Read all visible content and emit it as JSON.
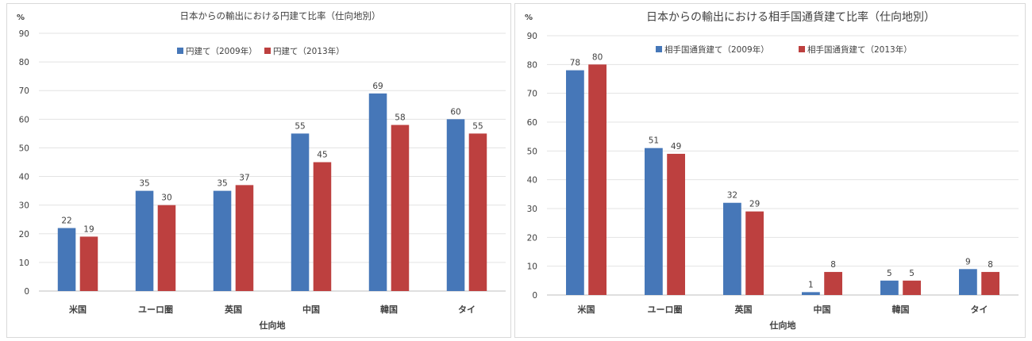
{
  "chart_data": [
    {
      "type": "bar",
      "title": "日本からの輸出における円建て比率（仕向地別）",
      "y_unit_label": "%",
      "xlabel": "仕向地",
      "ylabel": "",
      "ylim": [
        0,
        90
      ],
      "yticks": [
        0,
        10,
        20,
        30,
        40,
        50,
        60,
        70,
        80,
        90
      ],
      "categories": [
        "米国",
        "ユーロ圏",
        "英国",
        "中国",
        "韓国",
        "タイ"
      ],
      "series": [
        {
          "name": "円建て（2009年）",
          "color": "#4677b8",
          "values": [
            22,
            35,
            35,
            55,
            69,
            60
          ],
          "data_labels": [
            "22",
            "35",
            "35",
            "55",
            "69",
            "60"
          ]
        },
        {
          "name": "円建て（2013年）",
          "color": "#bd403f",
          "values": [
            19,
            30,
            37,
            45,
            58,
            55
          ],
          "data_labels": [
            "19",
            "30",
            "37",
            "45",
            "58",
            "55"
          ]
        }
      ],
      "legend_position": "top-center",
      "grid": true,
      "data_labels_visible": true
    },
    {
      "type": "bar",
      "title": "日本からの輸出における相手国通貨建て比率（仕向地別）",
      "y_unit_label": "%",
      "xlabel": "仕向地",
      "ylabel": "",
      "ylim": [
        0,
        90
      ],
      "yticks": [
        0,
        10,
        20,
        30,
        40,
        50,
        60,
        70,
        80,
        90
      ],
      "categories": [
        "米国",
        "ユーロ圏",
        "英国",
        "中国",
        "韓国",
        "タイ"
      ],
      "series": [
        {
          "name": "相手国通貨建て（2009年）",
          "color": "#4677b8",
          "values": [
            78,
            51,
            32,
            1,
            5,
            9
          ],
          "data_labels": [
            "78",
            "51",
            "32",
            "1",
            "5",
            "9"
          ]
        },
        {
          "name": "相手国通貨建て（2013年）",
          "color": "#bd403f",
          "values": [
            80,
            49,
            29,
            8,
            5,
            8
          ],
          "data_labels": [
            "80",
            "49",
            "29",
            "8",
            "5",
            "8"
          ]
        }
      ],
      "legend_position": "top-center",
      "grid": true,
      "data_labels_visible": true
    }
  ]
}
